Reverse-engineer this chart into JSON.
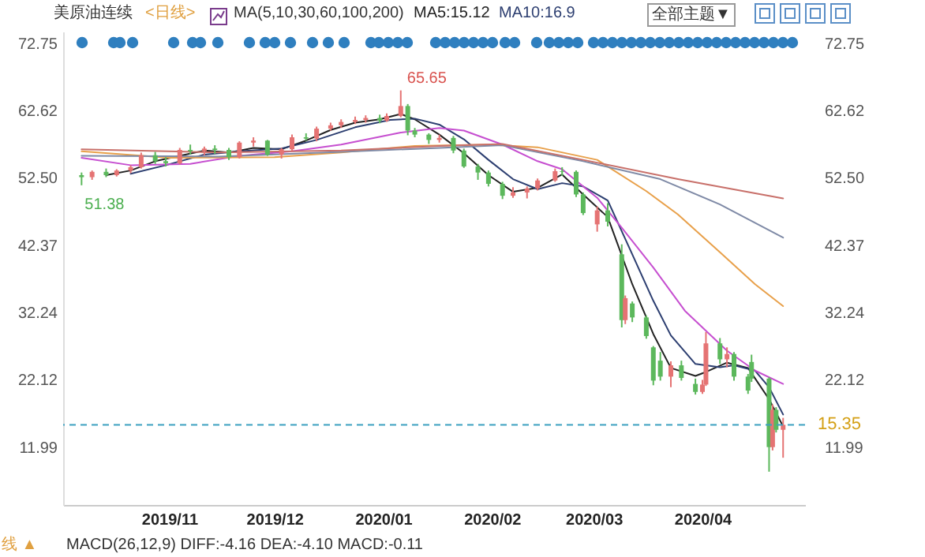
{
  "chart_data": {
    "type": "candlestick",
    "x": [
      "2019-10-07",
      "2019-10-10",
      "2019-10-14",
      "2019-10-17",
      "2019-10-21",
      "2019-10-24",
      "2019-10-28",
      "2019-10-31",
      "2019-11-04",
      "2019-11-07",
      "2019-11-11",
      "2019-11-14",
      "2019-11-18",
      "2019-11-21",
      "2019-11-25",
      "2019-11-29",
      "2019-12-03",
      "2019-12-06",
      "2019-12-10",
      "2019-12-13",
      "2019-12-17",
      "2019-12-20",
      "2019-12-24",
      "2019-12-27",
      "2019-12-31",
      "2020-01-02",
      "2020-01-06",
      "2020-01-08",
      "2020-01-10",
      "2020-01-14",
      "2020-01-17",
      "2020-01-21",
      "2020-01-24",
      "2020-01-28",
      "2020-01-31",
      "2020-02-04",
      "2020-02-07",
      "2020-02-11",
      "2020-02-14",
      "2020-02-19",
      "2020-02-21",
      "2020-02-25",
      "2020-02-27",
      "2020-03-02",
      "2020-03-05",
      "2020-03-09",
      "2020-03-10",
      "2020-03-12",
      "2020-03-16",
      "2020-03-18",
      "2020-03-20",
      "2020-03-23",
      "2020-03-26",
      "2020-03-30",
      "2020-04-01",
      "2020-04-02",
      "2020-04-06",
      "2020-04-08",
      "2020-04-10",
      "2020-04-14",
      "2020-04-15",
      "2020-04-20",
      "2020-04-21",
      "2020-04-22",
      "2020-04-24"
    ],
    "ohlc": [
      [
        52.9,
        53.3,
        51.38,
        52.6
      ],
      [
        52.6,
        53.6,
        52.2,
        53.4
      ],
      [
        53.4,
        53.9,
        52.6,
        52.9
      ],
      [
        52.9,
        53.8,
        52.7,
        53.6
      ],
      [
        53.6,
        54.4,
        53.2,
        54.1
      ],
      [
        54.1,
        56.3,
        53.9,
        55.9
      ],
      [
        55.9,
        56.4,
        54.6,
        55.0
      ],
      [
        55.0,
        55.6,
        54.2,
        54.7
      ],
      [
        54.7,
        57.0,
        54.5,
        56.7
      ],
      [
        56.7,
        57.5,
        56.0,
        56.5
      ],
      [
        56.5,
        57.2,
        55.9,
        56.9
      ],
      [
        56.9,
        57.4,
        56.1,
        56.7
      ],
      [
        56.7,
        57.0,
        55.2,
        55.6
      ],
      [
        55.6,
        58.0,
        55.4,
        57.8
      ],
      [
        57.8,
        58.6,
        57.2,
        58.1
      ],
      [
        58.1,
        58.2,
        55.8,
        56.0
      ],
      [
        56.0,
        57.0,
        55.4,
        56.8
      ],
      [
        56.8,
        59.0,
        56.5,
        58.6
      ],
      [
        58.6,
        59.2,
        58.1,
        58.4
      ],
      [
        58.4,
        60.2,
        58.0,
        59.9
      ],
      [
        59.9,
        60.8,
        59.6,
        60.4
      ],
      [
        60.4,
        61.3,
        60.0,
        60.9
      ],
      [
        60.9,
        61.7,
        60.6,
        61.2
      ],
      [
        61.2,
        61.9,
        60.8,
        61.5
      ],
      [
        61.5,
        62.0,
        60.7,
        61.1
      ],
      [
        61.1,
        62.2,
        60.9,
        61.8
      ],
      [
        61.8,
        65.65,
        61.6,
        63.3
      ],
      [
        63.3,
        63.6,
        58.9,
        59.6
      ],
      [
        59.6,
        60.0,
        58.6,
        59.0
      ],
      [
        59.0,
        59.2,
        57.6,
        58.2
      ],
      [
        58.2,
        59.0,
        57.8,
        58.5
      ],
      [
        58.5,
        58.8,
        56.2,
        56.6
      ],
      [
        56.6,
        56.9,
        54.0,
        54.2
      ],
      [
        54.2,
        54.6,
        52.2,
        53.3
      ],
      [
        53.3,
        53.6,
        51.2,
        51.6
      ],
      [
        51.6,
        51.9,
        49.3,
        49.8
      ],
      [
        49.8,
        51.1,
        49.5,
        50.3
      ],
      [
        50.3,
        51.2,
        49.4,
        50.9
      ],
      [
        50.9,
        52.4,
        50.6,
        52.1
      ],
      [
        52.1,
        53.9,
        51.9,
        53.5
      ],
      [
        53.5,
        54.1,
        52.8,
        53.4
      ],
      [
        53.4,
        53.6,
        49.6,
        50.0
      ],
      [
        50.0,
        50.3,
        46.9,
        47.2
      ],
      [
        45.5,
        48.2,
        44.4,
        47.6
      ],
      [
        47.6,
        48.7,
        45.2,
        45.9
      ],
      [
        41.0,
        42.5,
        30.0,
        31.1
      ],
      [
        31.1,
        34.8,
        30.5,
        34.4
      ],
      [
        33.6,
        33.9,
        30.8,
        31.5
      ],
      [
        31.5,
        31.8,
        28.3,
        28.7
      ],
      [
        27.0,
        27.2,
        21.3,
        22.0
      ],
      [
        25.0,
        26.3,
        22.0,
        22.6
      ],
      [
        22.6,
        24.9,
        21.0,
        24.3
      ],
      [
        24.3,
        25.0,
        22.0,
        22.4
      ],
      [
        21.5,
        22.3,
        19.9,
        20.3
      ],
      [
        20.3,
        22.1,
        20.0,
        21.4
      ],
      [
        21.4,
        29.3,
        21.2,
        27.6
      ],
      [
        27.6,
        28.4,
        24.5,
        25.2
      ],
      [
        25.2,
        27.0,
        24.0,
        26.0
      ],
      [
        26.0,
        26.3,
        22.0,
        22.6
      ],
      [
        22.6,
        23.0,
        20.0,
        20.5
      ],
      [
        24.8,
        25.9,
        21.8,
        22.3
      ],
      [
        22.3,
        22.5,
        8.3,
        12.0
      ],
      [
        12.0,
        18.4,
        11.5,
        17.6
      ],
      [
        17.6,
        18.0,
        14.2,
        14.6
      ],
      [
        14.6,
        16.4,
        10.4,
        15.35
      ]
    ],
    "colors": [
      "#5cb85c",
      "#e57373",
      "#5cb85c",
      "#e57373",
      "#e57373",
      "#e57373",
      "#5cb85c",
      "#5cb85c",
      "#e57373",
      "#5cb85c",
      "#e57373",
      "#5cb85c",
      "#5cb85c",
      "#e57373",
      "#e57373",
      "#5cb85c",
      "#e57373",
      "#e57373",
      "#5cb85c",
      "#e57373",
      "#e57373",
      "#e57373",
      "#e57373",
      "#e57373",
      "#5cb85c",
      "#e57373",
      "#e57373",
      "#5cb85c",
      "#5cb85c",
      "#5cb85c",
      "#e57373",
      "#5cb85c",
      "#5cb85c",
      "#5cb85c",
      "#5cb85c",
      "#5cb85c",
      "#e57373",
      "#e57373",
      "#e57373",
      "#e57373",
      "#5cb85c",
      "#5cb85c",
      "#5cb85c",
      "#e57373",
      "#5cb85c",
      "#5cb85c",
      "#e57373",
      "#5cb85c",
      "#5cb85c",
      "#5cb85c",
      "#5cb85c",
      "#e57373",
      "#5cb85c",
      "#5cb85c",
      "#e57373",
      "#e57373",
      "#5cb85c",
      "#e57373",
      "#5cb85c",
      "#5cb85c",
      "#5cb85c",
      "#5cb85c",
      "#e57373",
      "#5cb85c",
      "#e57373"
    ],
    "series": [
      {
        "type": "line",
        "color": "#222222",
        "x": [
          "2019-10-14",
          "2019-10-21",
          "2019-10-28",
          "2019-11-04",
          "2019-11-11",
          "2019-11-18",
          "2019-11-25",
          "2019-12-03",
          "2019-12-10",
          "2019-12-17",
          "2019-12-24",
          "2019-12-31",
          "2020-01-06",
          "2020-01-10",
          "2020-01-17",
          "2020-01-24",
          "2020-01-31",
          "2020-02-07",
          "2020-02-14",
          "2020-02-21",
          "2020-02-27",
          "2020-03-05",
          "2020-03-12",
          "2020-03-18",
          "2020-03-23",
          "2020-03-30",
          "2020-04-02",
          "2020-04-08",
          "2020-04-14",
          "2020-04-20",
          "2020-04-24"
        ],
        "values": [
          52.9,
          53.6,
          55.0,
          55.8,
          56.6,
          56.3,
          57.0,
          56.8,
          58.1,
          59.7,
          60.8,
          61.3,
          62.1,
          61.3,
          59.0,
          56.2,
          52.9,
          50.4,
          51.0,
          53.0,
          50.0,
          46.6,
          36.5,
          29.0,
          23.9,
          22.7,
          23.3,
          24.7,
          23.9,
          19.2,
          15.1
        ]
      },
      {
        "type": "line",
        "color": "#2c3e70",
        "x": [
          "2019-10-21",
          "2019-10-31",
          "2019-11-11",
          "2019-11-21",
          "2019-12-03",
          "2019-12-13",
          "2019-12-24",
          "2020-01-03",
          "2020-01-10",
          "2020-01-17",
          "2020-01-24",
          "2020-01-31",
          "2020-02-07",
          "2020-02-14",
          "2020-02-21",
          "2020-02-27",
          "2020-03-05",
          "2020-03-12",
          "2020-03-18",
          "2020-03-23",
          "2020-03-30",
          "2020-04-06",
          "2020-04-10",
          "2020-04-16",
          "2020-04-20",
          "2020-04-24"
        ],
        "values": [
          53.1,
          54.4,
          56.0,
          56.5,
          56.9,
          58.2,
          60.1,
          61.2,
          61.4,
          60.5,
          58.3,
          55.2,
          52.3,
          50.8,
          51.7,
          51.2,
          49.1,
          41.0,
          34.0,
          28.8,
          24.5,
          24.0,
          24.3,
          23.5,
          21.0,
          16.9
        ]
      },
      {
        "type": "line",
        "color": "#c64fd0",
        "x": [
          "2019-10-07",
          "2019-10-21",
          "2019-11-07",
          "2019-11-21",
          "2019-12-06",
          "2019-12-20",
          "2020-01-06",
          "2020-01-17",
          "2020-01-24",
          "2020-02-04",
          "2020-02-14",
          "2020-02-21",
          "2020-03-02",
          "2020-03-09",
          "2020-03-18",
          "2020-03-27",
          "2020-04-08",
          "2020-04-16",
          "2020-04-24"
        ],
        "values": [
          55.5,
          54.4,
          54.6,
          55.8,
          56.5,
          57.5,
          59.3,
          60.0,
          59.6,
          57.5,
          55.0,
          53.8,
          49.5,
          45.0,
          39.0,
          32.5,
          26.5,
          23.5,
          21.5
        ]
      },
      {
        "type": "line",
        "color": "#e8a04a",
        "x": [
          "2019-10-07",
          "2019-11-01",
          "2019-12-01",
          "2019-12-20",
          "2020-01-10",
          "2020-01-31",
          "2020-02-14",
          "2020-03-02",
          "2020-03-16",
          "2020-03-25",
          "2020-04-06",
          "2020-04-16",
          "2020-04-24"
        ],
        "values": [
          56.5,
          55.5,
          55.6,
          56.3,
          57.3,
          57.5,
          57.1,
          55.2,
          50.5,
          47.0,
          41.3,
          36.5,
          33.2
        ]
      },
      {
        "type": "line",
        "color": "#7f8aa6",
        "x": [
          "2019-10-07",
          "2019-11-15",
          "2019-12-20",
          "2020-01-17",
          "2020-02-04",
          "2020-02-27",
          "2020-03-20",
          "2020-04-06",
          "2020-04-24"
        ],
        "values": [
          55.8,
          55.7,
          56.4,
          57.0,
          57.4,
          55.0,
          52.3,
          48.5,
          43.5
        ]
      },
      {
        "type": "line",
        "color": "#c8706a",
        "x": [
          "2019-10-07",
          "2019-11-15",
          "2019-12-20",
          "2020-01-17",
          "2020-02-04",
          "2020-02-27",
          "2020-03-25",
          "2020-04-24"
        ],
        "values": [
          56.8,
          56.3,
          56.6,
          57.3,
          57.6,
          55.2,
          52.3,
          49.4
        ]
      }
    ],
    "xlim": [
      "2019-10-04",
      "2020-04-28"
    ],
    "xticks": [
      {
        "value": "2019-11-01",
        "label": "2019/11"
      },
      {
        "value": "2019-12-01",
        "label": "2019/12"
      },
      {
        "value": "2020-01-01",
        "label": "2020/01"
      },
      {
        "value": "2020-02-01",
        "label": "2020/02"
      },
      {
        "value": "2020-03-01",
        "label": "2020/03"
      },
      {
        "value": "2020-04-01",
        "label": "2020/04"
      }
    ],
    "ylim": [
      3.3,
      74.5
    ],
    "yticks": [
      11.99,
      22.12,
      32.24,
      42.37,
      {
        "value": 52.5,
        "label": "52.50"
      },
      62.62,
      72.75
    ],
    "y2lim": [
      3.3,
      74.5
    ],
    "y2ticks": [
      11.99,
      22.12,
      32.24,
      42.37,
      {
        "value": 52.5,
        "label": "52.50"
      },
      62.62,
      72.75
    ],
    "ref_lines": [
      {
        "axis": "y",
        "value": 15.35,
        "label": "15.35",
        "color": "#3a9fbf",
        "line_style": "dashed"
      }
    ],
    "annotations": [
      "美原油连续",
      "<日线>",
      "MA(5,10,30,60,100,200)",
      "MA5:15.12",
      "MA10:16.9",
      "全部主题▼",
      "MACD(26,12,9) DIFF:-4.16 DEA:-4.10 MACD:-0.11",
      "线 ▲",
      {
        "text": "65.65",
        "x": "2020-01-06",
        "y": 65.65
      },
      {
        "text": "51.38",
        "x": "2019-10-07",
        "y": 51.38
      }
    ],
    "grid": false,
    "line_style": "solid"
  }
}
